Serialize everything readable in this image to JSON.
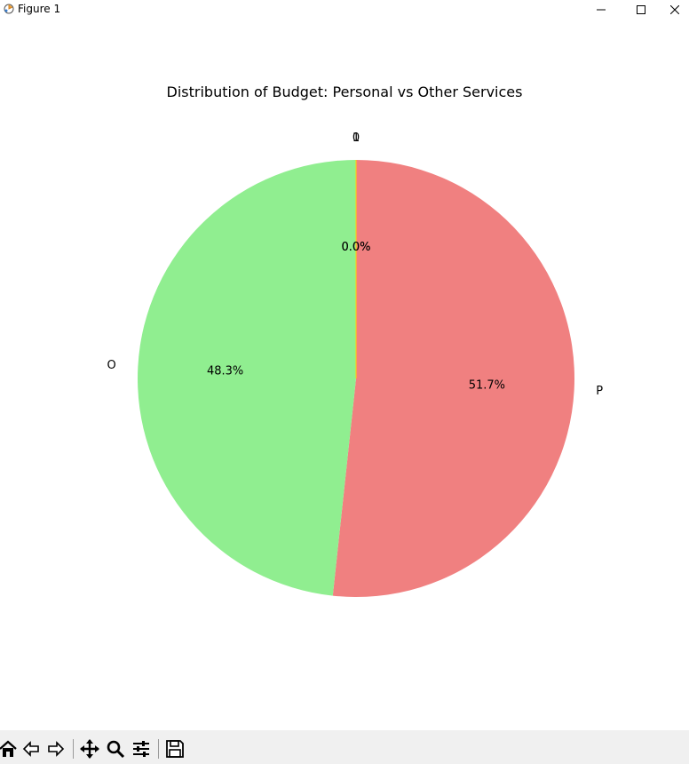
{
  "window": {
    "title": "Figure 1",
    "icons": [
      "app-icon",
      "minimize-icon",
      "maximize-icon",
      "close-icon"
    ]
  },
  "chart_data": {
    "type": "pie",
    "title": "Distribution of Budget: Personal vs Other Services",
    "labels": [
      "P",
      "O",
      "0",
      "1"
    ],
    "values": [
      51.7,
      48.3,
      0.0,
      0.0
    ],
    "pct_labels": [
      "51.7%",
      "48.3%",
      "0.0%",
      "0.0%"
    ],
    "colors": [
      "#f08080",
      "#90ee90",
      "#87cefa",
      "#ffd700"
    ],
    "start_angle_deg": 90,
    "direction": "clockwise",
    "legend": "none"
  },
  "toolbar": {
    "icons": [
      "home-icon",
      "back-icon",
      "forward-icon",
      "pan-icon",
      "zoom-icon",
      "configure-icon",
      "save-icon"
    ]
  }
}
